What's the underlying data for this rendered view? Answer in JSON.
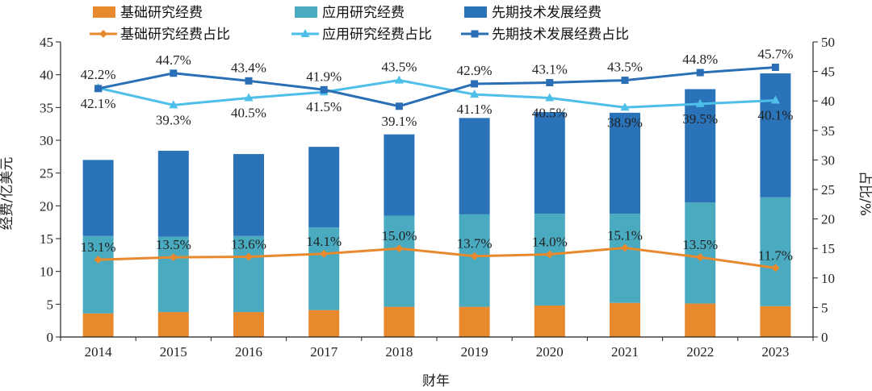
{
  "chart_data": {
    "type": "bar",
    "categories": [
      "2014",
      "2015",
      "2016",
      "2017",
      "2018",
      "2019",
      "2020",
      "2021",
      "2022",
      "2023"
    ],
    "xlabel": "财年",
    "ylabel": "经费/亿美元",
    "y2label": "占比/%",
    "ylim": [
      0,
      45
    ],
    "yticks": [
      0,
      5,
      10,
      15,
      20,
      25,
      30,
      35,
      40,
      45
    ],
    "y2lim": [
      0,
      50
    ],
    "y2ticks": [
      0,
      5,
      10,
      15,
      20,
      25,
      30,
      35,
      40,
      45,
      50
    ],
    "stacked": true,
    "series": [
      {
        "name": "基础研究经费",
        "kind": "bar",
        "color": "#e8892e",
        "values": [
          3.6,
          3.8,
          3.8,
          4.1,
          4.6,
          4.6,
          4.8,
          5.2,
          5.1,
          4.7
        ]
      },
      {
        "name": "应用研究经费",
        "kind": "bar",
        "color": "#4aabc0",
        "values": [
          11.8,
          11.5,
          11.6,
          12.6,
          13.9,
          14.1,
          14.0,
          13.6,
          15.4,
          16.6
        ]
      },
      {
        "name": "先期技术发展经费",
        "kind": "bar",
        "color": "#2a73b8",
        "values": [
          11.6,
          13.1,
          12.5,
          12.3,
          12.4,
          14.7,
          15.5,
          15.4,
          17.3,
          18.9
        ]
      }
    ],
    "line_series": [
      {
        "name": "基础研究经费占比",
        "axis": "right",
        "color": "#e8892e",
        "marker": "diamond",
        "values": [
          13.1,
          13.5,
          13.6,
          14.1,
          15.0,
          13.7,
          14.0,
          15.1,
          13.5,
          11.7
        ],
        "labels": [
          "13.1%",
          "13.5%",
          "13.6%",
          "14.1%",
          "15.0%",
          "13.7%",
          "14.0%",
          "15.1%",
          "13.5%",
          "11.7%"
        ]
      },
      {
        "name": "应用研究经费占比",
        "axis": "right",
        "color": "#4dbfe8",
        "marker": "triangle",
        "values": [
          42.2,
          39.3,
          40.5,
          41.5,
          43.5,
          41.1,
          40.5,
          38.9,
          39.5,
          40.1
        ],
        "labels": [
          "42.2%",
          "39.3%",
          "40.5%",
          "41.5%",
          "43.5%",
          "41.1%",
          "40.5%",
          "38.9%",
          "39.5%",
          "40.1%"
        ]
      },
      {
        "name": "先期技术发展经费占比",
        "axis": "right",
        "color": "#2a6fb5",
        "marker": "square",
        "values": [
          42.1,
          44.7,
          43.4,
          41.9,
          39.1,
          42.9,
          43.1,
          43.5,
          44.8,
          45.7
        ],
        "labels": [
          "42.1%",
          "44.7%",
          "43.4%",
          "41.9%",
          "39.1%",
          "42.9%",
          "43.1%",
          "43.5%",
          "44.8%",
          "45.7%"
        ]
      }
    ],
    "legend_position": "top-left",
    "grid": false
  }
}
